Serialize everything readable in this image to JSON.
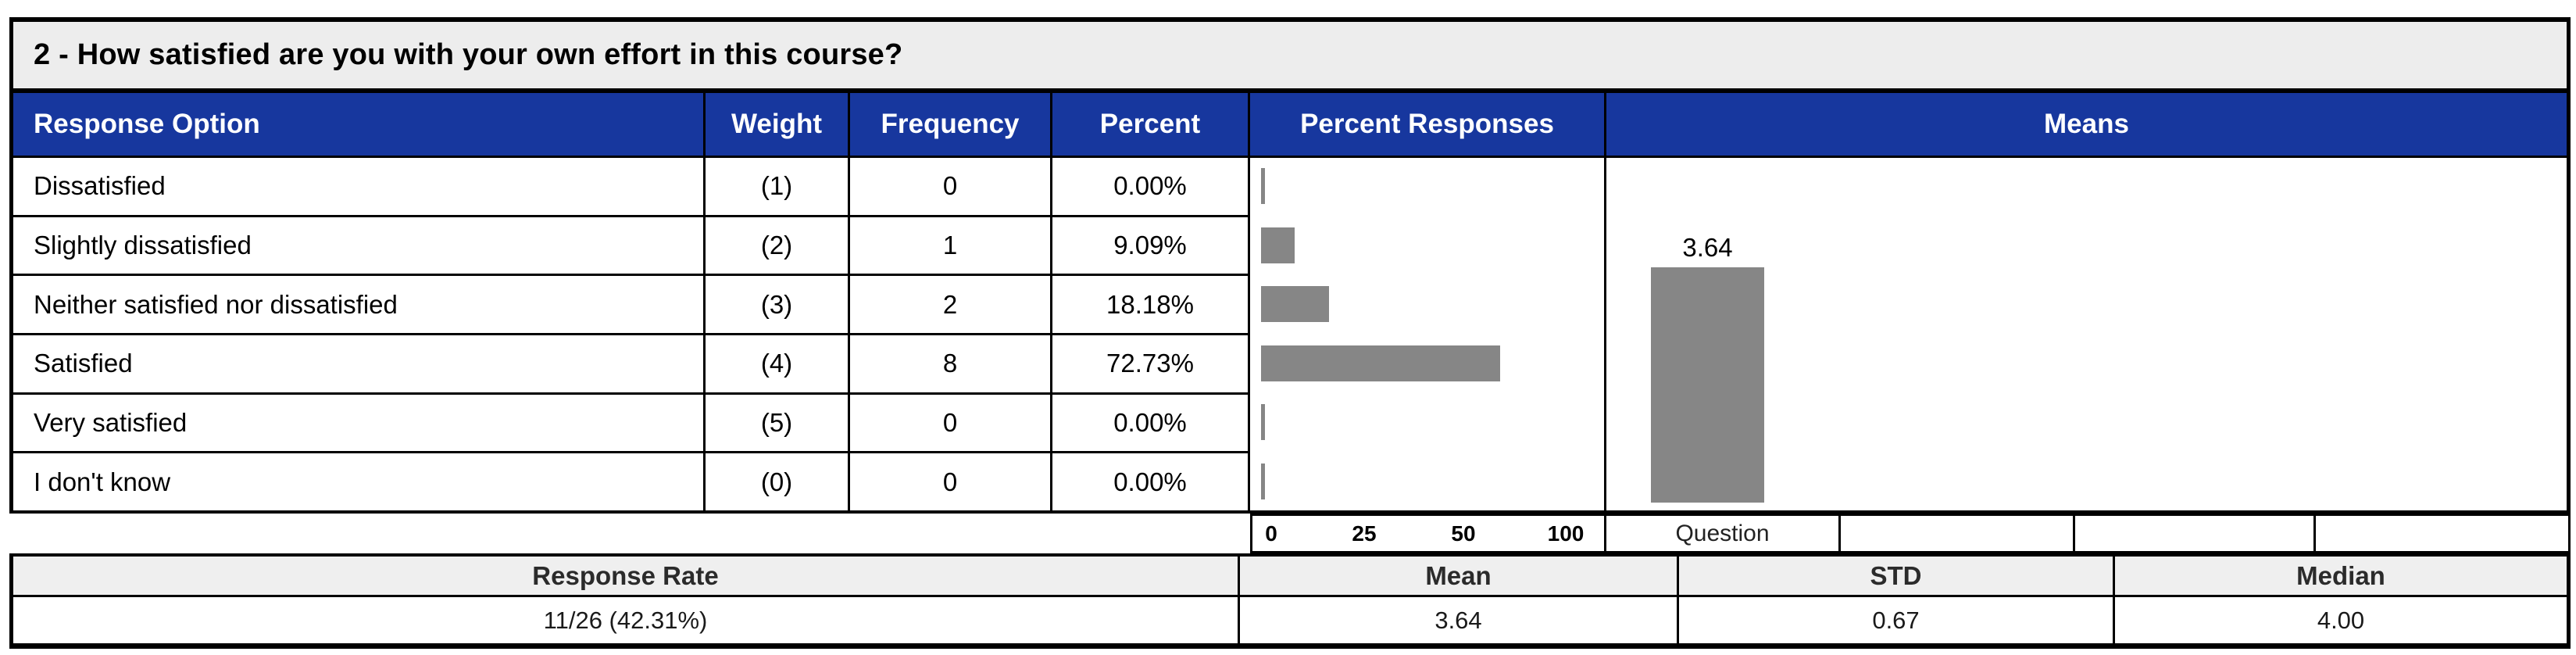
{
  "title": "2 - How satisfied are you with your own effort in this course?",
  "colors": {
    "header_bg": "#17379E",
    "header_text": "#FFFFFF",
    "bar_fill": "#868686",
    "title_bg": "#EDEDED",
    "summary_header_bg": "#EFEFEF",
    "border": "#000000"
  },
  "table": {
    "columns": [
      "Response Option",
      "Weight",
      "Frequency",
      "Percent",
      "Percent Responses",
      "Means"
    ],
    "rows": [
      {
        "option": "Dissatisfied",
        "weight": "(1)",
        "frequency": "0",
        "percent": "0.00%"
      },
      {
        "option": "Slightly dissatisfied",
        "weight": "(2)",
        "frequency": "1",
        "percent": "9.09%"
      },
      {
        "option": "Neither satisfied nor dissatisfied",
        "weight": "(3)",
        "frequency": "2",
        "percent": "18.18%"
      },
      {
        "option": "Satisfied",
        "weight": "(4)",
        "frequency": "8",
        "percent": "72.73%"
      },
      {
        "option": "Very satisfied",
        "weight": "(5)",
        "frequency": "0",
        "percent": "0.00%"
      },
      {
        "option": "I don't know",
        "weight": "(0)",
        "frequency": "0",
        "percent": "0.00%"
      }
    ]
  },
  "chart_data": [
    {
      "type": "bar",
      "title": "Percent Responses",
      "orientation": "horizontal",
      "categories": [
        "Dissatisfied",
        "Slightly dissatisfied",
        "Neither satisfied nor dissatisfied",
        "Satisfied",
        "Very satisfied",
        "I don't know"
      ],
      "values": [
        0,
        9.09,
        18.18,
        72.73,
        0,
        0
      ],
      "xlabel": "",
      "ylabel": "",
      "axis_ticks": [
        0,
        25,
        50,
        100
      ],
      "axis_note": "tick marks 0/25/50/100 are equally spaced (non-linear axis)",
      "bar_color": "#868686",
      "grid": false,
      "legend": "none"
    },
    {
      "type": "bar",
      "title": "Means",
      "orientation": "vertical",
      "categories": [
        "Question"
      ],
      "values": [
        3.64
      ],
      "bar_label": "3.64",
      "ylim": [
        0,
        5
      ],
      "bar_color": "#868686",
      "grid": false,
      "legend": "none"
    }
  ],
  "axis_row": {
    "ticks": [
      "0",
      "25",
      "50",
      "100"
    ],
    "question_label": "Question"
  },
  "summary": {
    "headers": [
      "Response Rate",
      "Mean",
      "STD",
      "Median"
    ],
    "values": [
      "11/26 (42.31%)",
      "3.64",
      "0.67",
      "4.00"
    ]
  }
}
